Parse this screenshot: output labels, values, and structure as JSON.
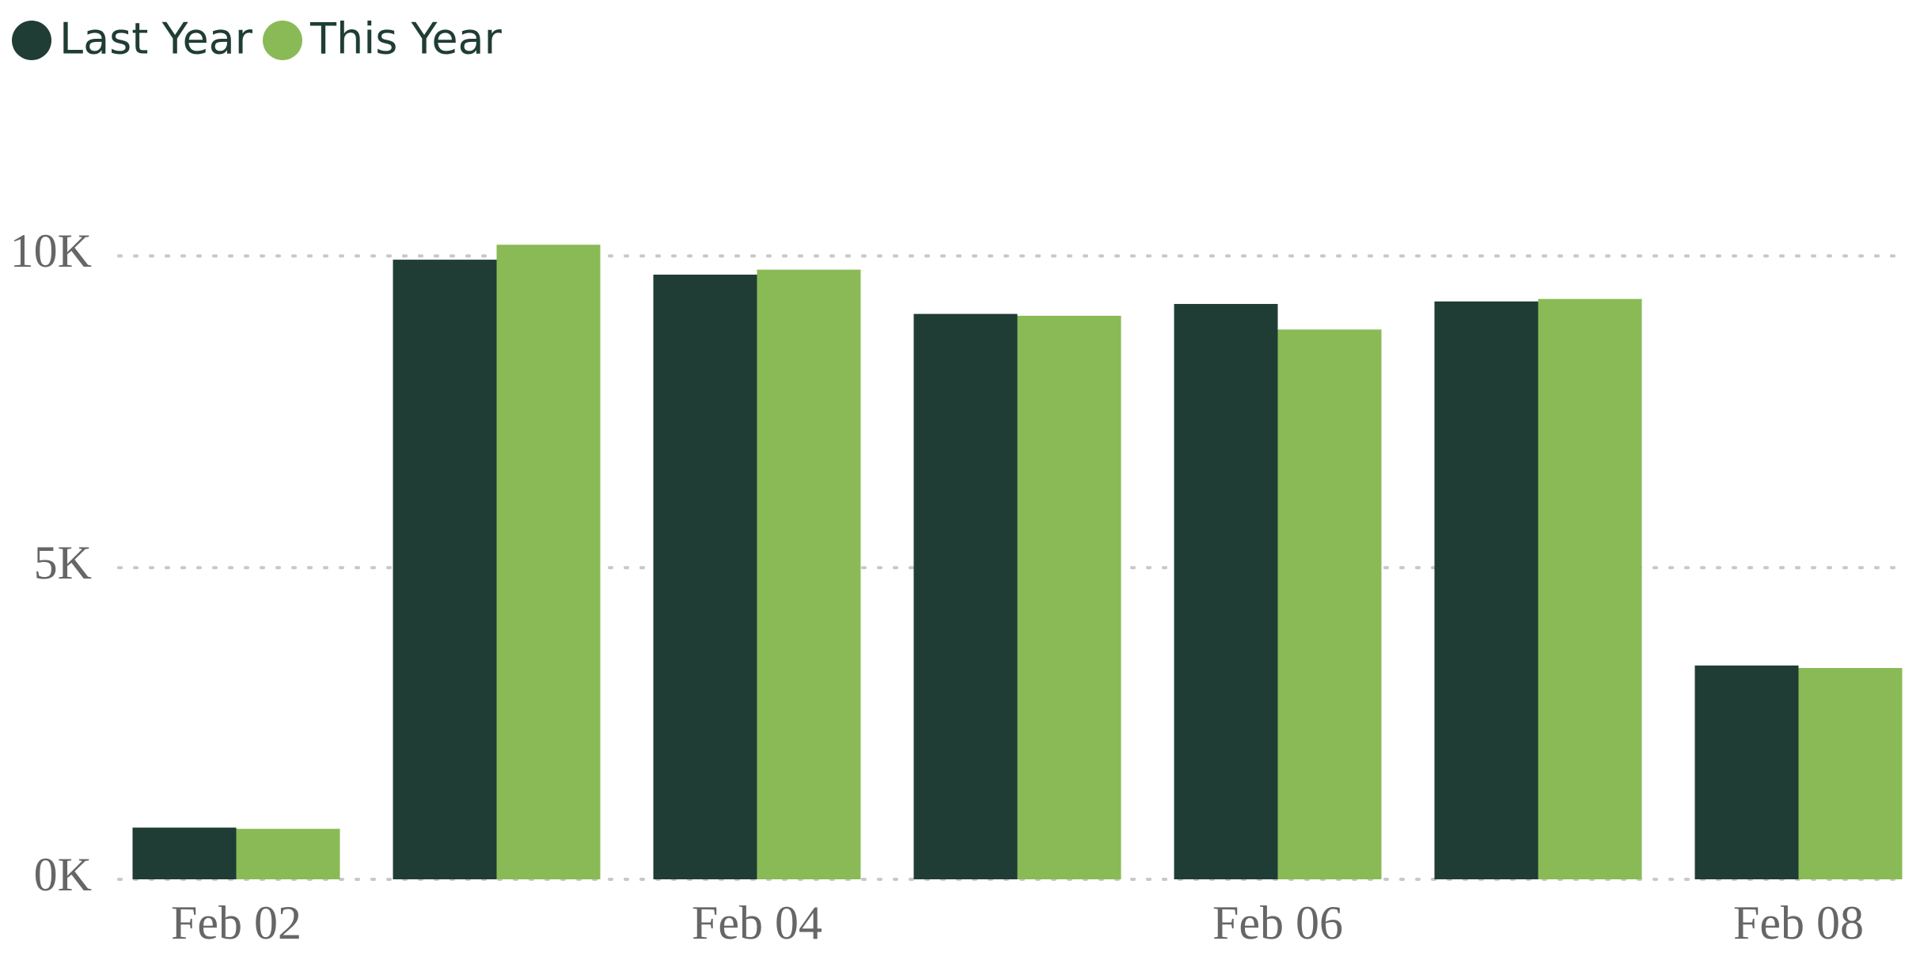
{
  "chart_data": {
    "type": "bar",
    "categories": [
      "Feb 02",
      null,
      "Feb 04",
      null,
      "Feb 06",
      null,
      "Feb 08"
    ],
    "series": [
      {
        "name": "Last Year",
        "color": "#1f3d35",
        "values": [
          830,
          9940,
          9700,
          9070,
          9230,
          9270,
          3430
        ]
      },
      {
        "name": "This Year",
        "color": "#8aba56",
        "values": [
          810,
          10180,
          9780,
          9040,
          8820,
          9310,
          3390
        ]
      }
    ],
    "ylim": [
      0,
      10500
    ],
    "yticks": [
      {
        "value": 0,
        "label": "0K"
      },
      {
        "value": 5000,
        "label": "5K"
      },
      {
        "value": 10000,
        "label": "10K"
      }
    ],
    "grid": true
  }
}
